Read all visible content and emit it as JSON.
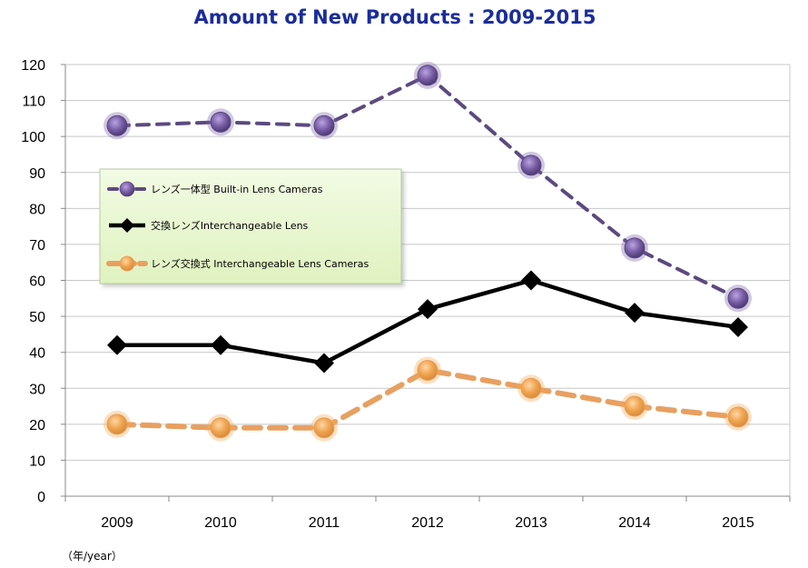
{
  "chart_data": {
    "type": "line",
    "title": "Amount of New Products : 2009-2015",
    "xlabel": "（年/year）",
    "ylabel": "",
    "categories": [
      "2009",
      "2010",
      "2011",
      "2012",
      "2013",
      "2014",
      "2015"
    ],
    "ylim": [
      0,
      120
    ],
    "yticks": [
      0,
      10,
      20,
      30,
      40,
      50,
      60,
      70,
      80,
      90,
      100,
      110,
      120
    ],
    "grid": true,
    "legend_position": "left",
    "series": [
      {
        "name": "レンズ一体型 Built-in Lens Cameras",
        "values": [
          103,
          104,
          103,
          117,
          92,
          69,
          55
        ],
        "color": "#5b4a7f",
        "marker_color": "#7a5fa8",
        "line_style": "dashed",
        "marker": "circle"
      },
      {
        "name": "交換レンズInterchangeable Lens",
        "values": [
          42,
          42,
          37,
          52,
          60,
          51,
          47
        ],
        "color": "#000000",
        "marker_color": "#000000",
        "line_style": "solid",
        "marker": "diamond"
      },
      {
        "name": "レンズ交換式 Interchangeable Lens Cameras",
        "values": [
          20,
          19,
          19,
          35,
          30,
          25,
          22
        ],
        "color": "#e8a060",
        "marker_color": "#f0a850",
        "line_style": "dashed",
        "marker": "circle"
      }
    ]
  },
  "colors": {
    "title": "#1a2d9a",
    "grid": "#c8c8c8",
    "legend_bg": "#e9f7d0",
    "legend_border": "#b9c8a0"
  }
}
